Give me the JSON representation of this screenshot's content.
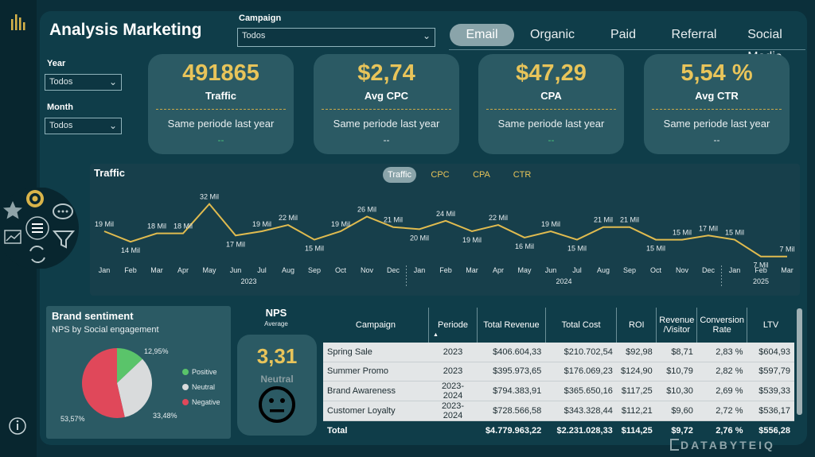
{
  "header": {
    "title": "Analysis Marketing"
  },
  "filters": {
    "campaign": {
      "label": "Campaign",
      "value": "Todos"
    },
    "year": {
      "label": "Year",
      "value": "Todos"
    },
    "month": {
      "label": "Month",
      "value": "Todos"
    }
  },
  "channel_tabs": [
    "Email",
    "Organic",
    "Paid",
    "Referral",
    "Social Media"
  ],
  "active_channel": "Email",
  "kpis": [
    {
      "value": "491865",
      "name": "Traffic",
      "compare": "Same periode last year",
      "delta": "--",
      "delta_color": "#49c07a"
    },
    {
      "value": "$2,74",
      "name": "Avg CPC",
      "compare": "Same periode last year",
      "delta": "--",
      "delta_color": "#e8eef0"
    },
    {
      "value": "$47,29",
      "name": "CPA",
      "compare": "Same periode last year",
      "delta": "--",
      "delta_color": "#49c07a"
    },
    {
      "value": "5,54 %",
      "name": "Avg CTR",
      "compare": "Same periode last year",
      "delta": "--",
      "delta_color": "#e8eef0"
    }
  ],
  "traffic_chart": {
    "title": "Traffic",
    "metric_tabs": [
      "Traffic",
      "CPC",
      "CPA",
      "CTR"
    ],
    "active_metric": "Traffic",
    "years": [
      "2023",
      "2024",
      "2025"
    ]
  },
  "chart_data": {
    "type": "line",
    "x": [
      "Jan",
      "Feb",
      "Mar",
      "Apr",
      "May",
      "Jun",
      "Jul",
      "Aug",
      "Sep",
      "Oct",
      "Nov",
      "Dec",
      "Jan",
      "Feb",
      "Mar",
      "Apr",
      "May",
      "Jun",
      "Jul",
      "Aug",
      "Sep",
      "Oct",
      "Nov",
      "Dec",
      "Jan",
      "Feb",
      "Mar"
    ],
    "values": [
      19,
      14,
      18,
      18,
      32,
      17,
      19,
      22,
      15,
      19,
      26,
      21,
      20,
      24,
      19,
      22,
      16,
      19,
      15,
      21,
      21,
      15,
      15,
      17,
      15,
      7,
      7
    ],
    "labels": [
      "19 Mil",
      "14 Mil",
      "18 Mil",
      "18 Mil",
      "32 Mil",
      "17 Mil",
      "19 Mil",
      "22 Mil",
      "15 Mil",
      "19 Mil",
      "26 Mil",
      "21 Mil",
      "20 Mil",
      "24 Mil",
      "19 Mil",
      "22 Mil",
      "16 Mil",
      "19 Mil",
      "15 Mil",
      "21 Mil",
      "21 Mil",
      "15 Mil",
      "15 Mil",
      "17 Mil",
      "15 Mil",
      "7 Mil",
      "7 Mil"
    ],
    "label_pos": [
      "a",
      "b",
      "a",
      "a",
      "a",
      "b",
      "a",
      "a",
      "b",
      "a",
      "a",
      "a",
      "b",
      "a",
      "b",
      "a",
      "b",
      "a",
      "b",
      "a",
      "a",
      "b",
      "a",
      "a",
      "a",
      "b",
      "a"
    ],
    "ylim": [
      5,
      33
    ],
    "line_color": "#e0bb4f"
  },
  "brand": {
    "title": "Brand sentiment",
    "subtitle": "NPS by Social engagement",
    "pie": [
      {
        "name": "Positive",
        "pct": 12.95,
        "label": "12,95%",
        "color": "#5ac46a"
      },
      {
        "name": "Neutral",
        "pct": 33.48,
        "label": "33,48%",
        "color": "#d9dbdc"
      },
      {
        "name": "Negative",
        "pct": 53.57,
        "label": "53,57%",
        "color": "#e0485a"
      }
    ]
  },
  "nps": {
    "title": "NPS",
    "subtitle": "Average",
    "value": "3,31",
    "status": "Neutral"
  },
  "table": {
    "headers": [
      "Campaign",
      "Periode",
      "Total Revenue",
      "Total Cost",
      "ROI",
      "Revenue /Visitor",
      "Conversion Rate",
      "LTV"
    ],
    "rows": [
      [
        "Spring Sale",
        "2023",
        "$406.604,33",
        "$210.702,54",
        "$92,98",
        "$8,71",
        "2,83 %",
        "$604,93"
      ],
      [
        "Summer Promo",
        "2023",
        "$395.973,65",
        "$176.069,23",
        "$124,90",
        "$10,79",
        "2,82 %",
        "$597,79"
      ],
      [
        "Brand Awareness",
        "2023-2024",
        "$794.383,91",
        "$365.650,16",
        "$117,25",
        "$10,30",
        "2,69 %",
        "$539,33"
      ],
      [
        "Customer Loyalty",
        "2023-2024",
        "$728.566,58",
        "$343.328,44",
        "$112,21",
        "$9,60",
        "2,72 %",
        "$536,17"
      ]
    ],
    "total": [
      "Total",
      "",
      "$4.779.963,22",
      "$2.231.028,33",
      "$114,25",
      "$9,72",
      "2,76 %",
      "$556,28"
    ]
  },
  "brand_logo": "DATABYTEIQ"
}
